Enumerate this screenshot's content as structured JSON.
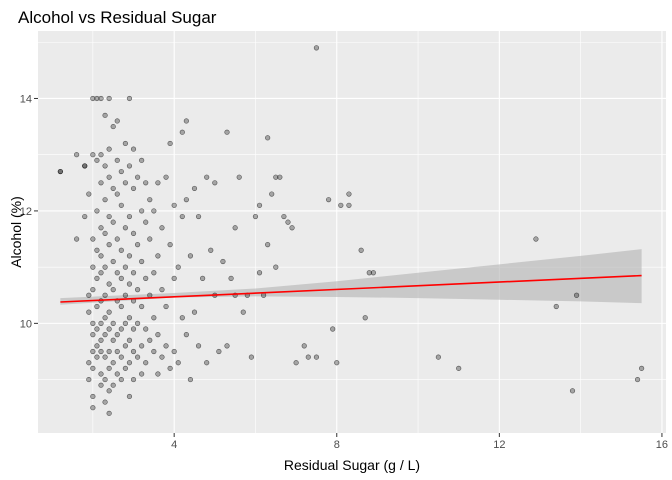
{
  "chart_data": {
    "type": "scatter",
    "title": "Alcohol vs Residual Sugar",
    "xlabel": "Residual Sugar (g / L)",
    "ylabel": "Alcohol (%)",
    "xlim": [
      0.65,
      16.1
    ],
    "ylim": [
      8.05,
      15.2
    ],
    "x_ticks": [
      {
        "value": 4,
        "label": "4"
      },
      {
        "value": 8,
        "label": "8"
      },
      {
        "value": 12,
        "label": "12"
      },
      {
        "value": 16,
        "label": "16"
      }
    ],
    "y_ticks": [
      {
        "value": 10,
        "label": "10"
      },
      {
        "value": 12,
        "label": "12"
      },
      {
        "value": 14,
        "label": "14"
      }
    ],
    "x_minor": [
      2,
      6,
      10,
      14
    ],
    "y_minor": [
      9,
      11,
      13,
      15
    ],
    "grid": true,
    "colors": {
      "panel": "#ebebeb",
      "grid": "#ffffff",
      "point": "#000000",
      "trend": "#ff0000",
      "ribbon": "#b3b3b3"
    },
    "points": [
      [
        1.2,
        12.7
      ],
      [
        1.2,
        12.7
      ],
      [
        1.6,
        13.0
      ],
      [
        1.6,
        11.5
      ],
      [
        1.8,
        12.8
      ],
      [
        1.8,
        12.8
      ],
      [
        1.8,
        11.9
      ],
      [
        1.9,
        10.5
      ],
      [
        1.9,
        10.2
      ],
      [
        1.9,
        9.3
      ],
      [
        1.9,
        9.0
      ],
      [
        1.9,
        12.3
      ],
      [
        2.0,
        14.0
      ],
      [
        2.0,
        13.0
      ],
      [
        2.0,
        11.5
      ],
      [
        2.0,
        11.0
      ],
      [
        2.0,
        10.6
      ],
      [
        2.0,
        10.0
      ],
      [
        2.0,
        9.8
      ],
      [
        2.0,
        9.5
      ],
      [
        2.0,
        9.2
      ],
      [
        2.0,
        8.7
      ],
      [
        2.0,
        8.5
      ],
      [
        2.1,
        14.0
      ],
      [
        2.1,
        12.9
      ],
      [
        2.1,
        12.0
      ],
      [
        2.1,
        11.3
      ],
      [
        2.1,
        10.8
      ],
      [
        2.1,
        10.3
      ],
      [
        2.1,
        9.9
      ],
      [
        2.1,
        9.6
      ],
      [
        2.1,
        9.4
      ],
      [
        2.2,
        14.0
      ],
      [
        2.2,
        13.0
      ],
      [
        2.2,
        12.5
      ],
      [
        2.2,
        11.7
      ],
      [
        2.2,
        11.2
      ],
      [
        2.2,
        10.9
      ],
      [
        2.2,
        10.4
      ],
      [
        2.2,
        10.0
      ],
      [
        2.2,
        9.7
      ],
      [
        2.2,
        9.5
      ],
      [
        2.2,
        9.1
      ],
      [
        2.2,
        8.9
      ],
      [
        2.3,
        13.7
      ],
      [
        2.3,
        12.8
      ],
      [
        2.3,
        12.2
      ],
      [
        2.3,
        11.6
      ],
      [
        2.3,
        11.0
      ],
      [
        2.3,
        10.5
      ],
      [
        2.3,
        10.1
      ],
      [
        2.3,
        9.8
      ],
      [
        2.3,
        9.4
      ],
      [
        2.3,
        9.0
      ],
      [
        2.3,
        8.6
      ],
      [
        2.4,
        14.0
      ],
      [
        2.4,
        13.1
      ],
      [
        2.4,
        12.6
      ],
      [
        2.4,
        11.9
      ],
      [
        2.4,
        11.4
      ],
      [
        2.4,
        10.7
      ],
      [
        2.4,
        10.2
      ],
      [
        2.4,
        9.9
      ],
      [
        2.4,
        9.5
      ],
      [
        2.4,
        9.2
      ],
      [
        2.4,
        8.8
      ],
      [
        2.4,
        8.4
      ],
      [
        2.5,
        13.5
      ],
      [
        2.5,
        12.4
      ],
      [
        2.5,
        11.8
      ],
      [
        2.5,
        11.1
      ],
      [
        2.5,
        10.6
      ],
      [
        2.5,
        10.0
      ],
      [
        2.5,
        9.7
      ],
      [
        2.5,
        9.3
      ],
      [
        2.5,
        8.9
      ],
      [
        2.6,
        13.6
      ],
      [
        2.6,
        12.9
      ],
      [
        2.6,
        12.3
      ],
      [
        2.6,
        11.5
      ],
      [
        2.6,
        10.9
      ],
      [
        2.6,
        10.4
      ],
      [
        2.6,
        9.8
      ],
      [
        2.6,
        9.5
      ],
      [
        2.6,
        9.1
      ],
      [
        2.7,
        12.7
      ],
      [
        2.7,
        12.1
      ],
      [
        2.7,
        11.3
      ],
      [
        2.7,
        10.8
      ],
      [
        2.7,
        10.3
      ],
      [
        2.7,
        9.9
      ],
      [
        2.7,
        9.4
      ],
      [
        2.7,
        9.0
      ],
      [
        2.8,
        13.2
      ],
      [
        2.8,
        12.5
      ],
      [
        2.8,
        11.7
      ],
      [
        2.8,
        11.0
      ],
      [
        2.8,
        10.5
      ],
      [
        2.8,
        10.0
      ],
      [
        2.8,
        9.6
      ],
      [
        2.8,
        9.2
      ],
      [
        2.9,
        14.0
      ],
      [
        2.9,
        12.8
      ],
      [
        2.9,
        11.9
      ],
      [
        2.9,
        11.2
      ],
      [
        2.9,
        10.7
      ],
      [
        2.9,
        10.1
      ],
      [
        2.9,
        9.7
      ],
      [
        2.9,
        9.3
      ],
      [
        2.9,
        8.7
      ],
      [
        3.0,
        13.1
      ],
      [
        3.0,
        12.4
      ],
      [
        3.0,
        11.6
      ],
      [
        3.0,
        10.9
      ],
      [
        3.0,
        10.4
      ],
      [
        3.0,
        9.9
      ],
      [
        3.0,
        9.5
      ],
      [
        3.0,
        9.0
      ],
      [
        3.1,
        12.6
      ],
      [
        3.1,
        11.4
      ],
      [
        3.1,
        10.6
      ],
      [
        3.1,
        10.0
      ],
      [
        3.1,
        9.4
      ],
      [
        3.2,
        12.9
      ],
      [
        3.2,
        12.0
      ],
      [
        3.2,
        11.1
      ],
      [
        3.2,
        10.3
      ],
      [
        3.2,
        9.6
      ],
      [
        3.2,
        9.1
      ],
      [
        3.3,
        12.5
      ],
      [
        3.3,
        11.8
      ],
      [
        3.3,
        10.8
      ],
      [
        3.3,
        9.9
      ],
      [
        3.3,
        9.3
      ],
      [
        3.4,
        12.2
      ],
      [
        3.4,
        11.5
      ],
      [
        3.4,
        10.5
      ],
      [
        3.4,
        9.7
      ],
      [
        3.5,
        12.0
      ],
      [
        3.5,
        10.9
      ],
      [
        3.5,
        10.1
      ],
      [
        3.5,
        9.5
      ],
      [
        3.6,
        12.5
      ],
      [
        3.6,
        11.2
      ],
      [
        3.6,
        9.8
      ],
      [
        3.6,
        9.1
      ],
      [
        3.7,
        11.7
      ],
      [
        3.7,
        10.6
      ],
      [
        3.7,
        9.4
      ],
      [
        3.8,
        12.6
      ],
      [
        3.8,
        10.3
      ],
      [
        3.8,
        9.6
      ],
      [
        3.9,
        13.2
      ],
      [
        3.9,
        11.4
      ],
      [
        3.9,
        9.2
      ],
      [
        4.0,
        12.1
      ],
      [
        4.0,
        10.8
      ],
      [
        4.0,
        9.5
      ],
      [
        4.1,
        11.0
      ],
      [
        4.1,
        9.3
      ],
      [
        4.2,
        13.4
      ],
      [
        4.2,
        11.9
      ],
      [
        4.2,
        10.1
      ],
      [
        4.3,
        13.6
      ],
      [
        4.3,
        12.2
      ],
      [
        4.3,
        9.8
      ],
      [
        4.4,
        11.2
      ],
      [
        4.4,
        9.0
      ],
      [
        4.5,
        12.4
      ],
      [
        4.5,
        10.2
      ],
      [
        4.6,
        11.9
      ],
      [
        4.6,
        9.6
      ],
      [
        4.7,
        10.8
      ],
      [
        4.8,
        12.6
      ],
      [
        4.8,
        9.3
      ],
      [
        4.9,
        11.3
      ],
      [
        5.0,
        12.5
      ],
      [
        5.0,
        10.5
      ],
      [
        5.1,
        9.5
      ],
      [
        5.2,
        11.1
      ],
      [
        5.3,
        13.4
      ],
      [
        5.3,
        9.6
      ],
      [
        5.4,
        10.8
      ],
      [
        5.5,
        11.7
      ],
      [
        5.5,
        10.5
      ],
      [
        5.6,
        12.6
      ],
      [
        5.7,
        10.2
      ],
      [
        5.8,
        10.5
      ],
      [
        5.9,
        9.4
      ],
      [
        6.0,
        11.9
      ],
      [
        6.1,
        12.1
      ],
      [
        6.1,
        10.9
      ],
      [
        6.2,
        10.5
      ],
      [
        6.3,
        13.3
      ],
      [
        6.3,
        11.4
      ],
      [
        6.4,
        12.3
      ],
      [
        6.5,
        12.6
      ],
      [
        6.5,
        11.0
      ],
      [
        6.6,
        12.6
      ],
      [
        6.7,
        11.9
      ],
      [
        6.8,
        11.8
      ],
      [
        6.9,
        11.7
      ],
      [
        7.0,
        9.3
      ],
      [
        7.2,
        9.6
      ],
      [
        7.3,
        9.4
      ],
      [
        7.5,
        14.9
      ],
      [
        7.5,
        9.4
      ],
      [
        7.8,
        12.2
      ],
      [
        7.9,
        9.9
      ],
      [
        8.0,
        9.3
      ],
      [
        8.1,
        12.1
      ],
      [
        8.3,
        12.3
      ],
      [
        8.3,
        12.1
      ],
      [
        8.6,
        11.3
      ],
      [
        8.7,
        10.1
      ],
      [
        8.8,
        10.9
      ],
      [
        8.9,
        10.9
      ],
      [
        10.5,
        9.4
      ],
      [
        11.0,
        9.2
      ],
      [
        12.9,
        11.5
      ],
      [
        13.4,
        10.3
      ],
      [
        13.8,
        8.8
      ],
      [
        13.9,
        10.5
      ],
      [
        15.4,
        9.0
      ],
      [
        15.5,
        9.2
      ]
    ],
    "trend_line": {
      "x": [
        1.2,
        15.5
      ],
      "y": [
        10.38,
        10.85
      ]
    },
    "confidence_band": {
      "x": [
        1.2,
        4.0,
        6.0,
        8.0,
        10.0,
        12.0,
        14.0,
        15.5
      ],
      "lower": [
        10.33,
        10.46,
        10.48,
        10.47,
        10.45,
        10.42,
        10.39,
        10.36
      ],
      "upper": [
        10.45,
        10.54,
        10.62,
        10.75,
        10.9,
        11.05,
        11.2,
        11.32
      ]
    }
  }
}
